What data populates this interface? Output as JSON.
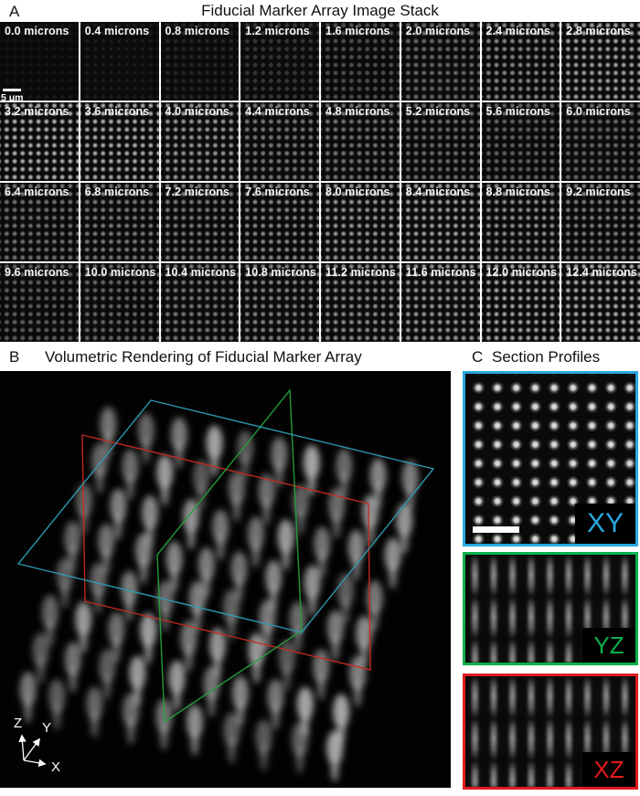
{
  "figure": {
    "panel_a": {
      "label": "A",
      "title": "Fiducial Marker Array Image Stack",
      "scale_bar_label": "5 μm",
      "slices": [
        {
          "label": "0.0 microns",
          "intensity": 0.05
        },
        {
          "label": "0.4 microns",
          "intensity": 0.07
        },
        {
          "label": "0.8 microns",
          "intensity": 0.12
        },
        {
          "label": "1.2 microns",
          "intensity": 0.2
        },
        {
          "label": "1.6 microns",
          "intensity": 0.3
        },
        {
          "label": "2.0 microns",
          "intensity": 0.4
        },
        {
          "label": "2.4 microns",
          "intensity": 0.52
        },
        {
          "label": "2.8 microns",
          "intensity": 0.62
        },
        {
          "label": "3.2 microns",
          "intensity": 0.68
        },
        {
          "label": "3.6 microns",
          "intensity": 0.66
        },
        {
          "label": "4.0 microns",
          "intensity": 0.58
        },
        {
          "label": "4.4 microns",
          "intensity": 0.46
        },
        {
          "label": "4.8 microns",
          "intensity": 0.44
        },
        {
          "label": "5.2 microns",
          "intensity": 0.42
        },
        {
          "label": "5.6 microns",
          "intensity": 0.38
        },
        {
          "label": "6.0 microns",
          "intensity": 0.4
        },
        {
          "label": "6.4 microns",
          "intensity": 0.44
        },
        {
          "label": "6.8 microns",
          "intensity": 0.46
        },
        {
          "label": "7.2 microns",
          "intensity": 0.48
        },
        {
          "label": "7.6 microns",
          "intensity": 0.52
        },
        {
          "label": "8.0 microns",
          "intensity": 0.58
        },
        {
          "label": "8.4 microns",
          "intensity": 0.62
        },
        {
          "label": "8.8 microns",
          "intensity": 0.55
        },
        {
          "label": "9.2 microns",
          "intensity": 0.48
        },
        {
          "label": "9.6 microns",
          "intensity": 0.36
        },
        {
          "label": "10.0 microns",
          "intensity": 0.4
        },
        {
          "label": "10.4 microns",
          "intensity": 0.46
        },
        {
          "label": "10.8 microns",
          "intensity": 0.5
        },
        {
          "label": "11.2 microns",
          "intensity": 0.54
        },
        {
          "label": "11.6 microns",
          "intensity": 0.58
        },
        {
          "label": "12.0 microns",
          "intensity": 0.64
        },
        {
          "label": "12.4 microns",
          "intensity": 0.66
        }
      ]
    },
    "panel_b": {
      "label": "B",
      "title": "Volumetric Rendering of Fiducial Marker Array",
      "axis_labels": {
        "x": "X",
        "y": "Y",
        "z": "Z"
      },
      "plane_colors": {
        "xy": "#2D9DB4",
        "yz": "#23A13B",
        "xz": "#C62A21"
      }
    },
    "panel_c": {
      "label": "C",
      "title": "Section Profiles",
      "sections": [
        {
          "id": "xy",
          "label": "XY",
          "color": "#29A9E0",
          "pattern": "dots"
        },
        {
          "id": "yz",
          "label": "YZ",
          "color": "#0BB14B",
          "pattern": "streaks"
        },
        {
          "id": "xz",
          "label": "XZ",
          "color": "#E31B1E",
          "pattern": "streaks"
        }
      ]
    }
  }
}
